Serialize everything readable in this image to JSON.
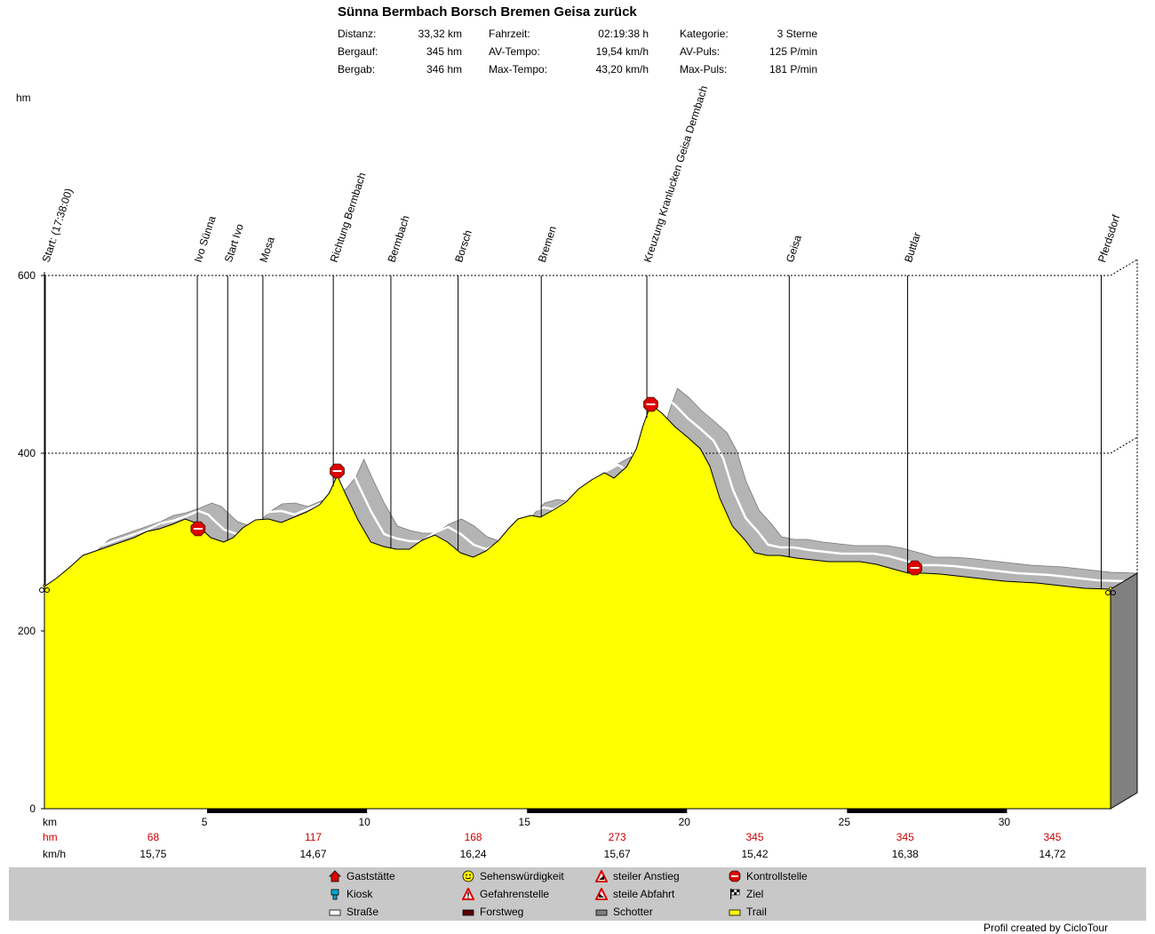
{
  "header": {
    "title": "Sünna Bermbach Borsch Bremen Geisa zurück",
    "stats": [
      {
        "label": "Distanz:",
        "value": "33,32 km"
      },
      {
        "label": "Bergauf:",
        "value": "345 hm"
      },
      {
        "label": "Bergab:",
        "value": "346 hm"
      },
      {
        "label": "Fahrzeit:",
        "value": "02:19:38 h"
      },
      {
        "label": "AV-Tempo:",
        "value": "19,54 km/h"
      },
      {
        "label": "Max-Tempo:",
        "value": "43,20 km/h"
      },
      {
        "label": "Kategorie:",
        "value": "3 Sterne"
      },
      {
        "label": "AV-Puls:",
        "value": "125 P/min"
      },
      {
        "label": "Max-Puls:",
        "value": "181 P/min"
      }
    ]
  },
  "colors": {
    "trail": "#ffff00",
    "shadow": "#b4b4b4",
    "side": "#808080",
    "stop": "#dd0000",
    "forstweg": "#000000",
    "cum_hm": "#cc0000"
  },
  "chart_data": {
    "type": "area",
    "ylabel": "hm",
    "xlabel": "km",
    "xlim": [
      0,
      33.32
    ],
    "ylim": [
      0,
      600
    ],
    "yticks": [
      0,
      200,
      400,
      600
    ],
    "xticks": [
      5,
      10,
      15,
      20,
      25,
      30
    ],
    "grid": "horizontal dashed at 200, 400, 600",
    "profile": [
      [
        0,
        250
      ],
      [
        0.4,
        260
      ],
      [
        0.8,
        272
      ],
      [
        1.2,
        285
      ],
      [
        1.6,
        290
      ],
      [
        2.0,
        295
      ],
      [
        2.4,
        300
      ],
      [
        2.8,
        305
      ],
      [
        3.2,
        312
      ],
      [
        3.6,
        315
      ],
      [
        4.0,
        320
      ],
      [
        4.4,
        326
      ],
      [
        4.7,
        322
      ],
      [
        4.9,
        315
      ],
      [
        5.2,
        305
      ],
      [
        5.6,
        300
      ],
      [
        5.9,
        305
      ],
      [
        6.2,
        316
      ],
      [
        6.6,
        325
      ],
      [
        7.0,
        326
      ],
      [
        7.4,
        322
      ],
      [
        7.8,
        328
      ],
      [
        8.2,
        334
      ],
      [
        8.6,
        342
      ],
      [
        8.9,
        355
      ],
      [
        9.15,
        375
      ],
      [
        9.4,
        355
      ],
      [
        9.8,
        325
      ],
      [
        10.2,
        300
      ],
      [
        10.6,
        295
      ],
      [
        11.0,
        292
      ],
      [
        11.4,
        292
      ],
      [
        11.8,
        302
      ],
      [
        12.2,
        308
      ],
      [
        12.6,
        300
      ],
      [
        13.0,
        288
      ],
      [
        13.4,
        283
      ],
      [
        13.8,
        290
      ],
      [
        14.2,
        302
      ],
      [
        14.5,
        315
      ],
      [
        14.8,
        326
      ],
      [
        15.2,
        330
      ],
      [
        15.5,
        328
      ],
      [
        15.9,
        336
      ],
      [
        16.3,
        345
      ],
      [
        16.7,
        360
      ],
      [
        17.1,
        370
      ],
      [
        17.5,
        378
      ],
      [
        17.8,
        372
      ],
      [
        18.2,
        385
      ],
      [
        18.5,
        405
      ],
      [
        18.7,
        430
      ],
      [
        18.95,
        455
      ],
      [
        19.3,
        445
      ],
      [
        19.7,
        430
      ],
      [
        20.1,
        418
      ],
      [
        20.5,
        405
      ],
      [
        20.8,
        385
      ],
      [
        21.1,
        350
      ],
      [
        21.5,
        318
      ],
      [
        21.9,
        302
      ],
      [
        22.2,
        288
      ],
      [
        22.6,
        285
      ],
      [
        23.0,
        285
      ],
      [
        23.5,
        282
      ],
      [
        24.0,
        280
      ],
      [
        24.5,
        278
      ],
      [
        25.0,
        278
      ],
      [
        25.5,
        278
      ],
      [
        26.0,
        275
      ],
      [
        26.5,
        270
      ],
      [
        27.0,
        265
      ],
      [
        27.5,
        265
      ],
      [
        28.0,
        264
      ],
      [
        28.5,
        262
      ],
      [
        29.0,
        260
      ],
      [
        29.5,
        258
      ],
      [
        30.0,
        256
      ],
      [
        30.5,
        255
      ],
      [
        31.0,
        254
      ],
      [
        31.5,
        252
      ],
      [
        32.0,
        250
      ],
      [
        32.5,
        248
      ],
      [
        33.32,
        247
      ]
    ],
    "waypoints": [
      {
        "km": 0.0,
        "label": "Start: (17:38:00)"
      },
      {
        "km": 4.75,
        "label": "Ivo Sünna"
      },
      {
        "km": 5.7,
        "label": "Start Ivo"
      },
      {
        "km": 6.8,
        "label": "Mosa"
      },
      {
        "km": 9.0,
        "label": "Richtung Bermbach"
      },
      {
        "km": 10.8,
        "label": "Bermbach"
      },
      {
        "km": 12.9,
        "label": "Borsch"
      },
      {
        "km": 15.5,
        "label": "Bremen"
      },
      {
        "km": 18.8,
        "label": "Kreuzung Kranlucken Geisa Dermbach"
      },
      {
        "km": 23.25,
        "label": "Geisa"
      },
      {
        "km": 26.95,
        "label": "Buttlar"
      },
      {
        "km": 33.0,
        "label": "Pferdsdorf"
      }
    ],
    "stops": [
      {
        "km": 4.8,
        "hm": 315
      },
      {
        "km": 9.15,
        "hm": 380
      },
      {
        "km": 18.95,
        "hm": 455
      },
      {
        "km": 27.2,
        "hm": 271
      }
    ],
    "forstweg_segments": [
      [
        5,
        10
      ],
      [
        15,
        20
      ],
      [
        25,
        30
      ]
    ],
    "summary_rows": {
      "hm_label": "hm",
      "kmh_label": "km/h",
      "segments": [
        {
          "km": 3.4,
          "hm": "68",
          "kmh": "15,75"
        },
        {
          "km": 8.4,
          "hm": "117",
          "kmh": "14,67"
        },
        {
          "km": 13.4,
          "hm": "168",
          "kmh": "16,24"
        },
        {
          "km": 17.9,
          "hm": "273",
          "kmh": "15,67"
        },
        {
          "km": 22.2,
          "hm": "345",
          "kmh": "15,42"
        },
        {
          "km": 26.9,
          "hm": "345",
          "kmh": "16,38"
        },
        {
          "km": 31.5,
          "hm": "345",
          "kmh": "14,72"
        }
      ]
    }
  },
  "legend": [
    {
      "icon": "house-icon",
      "label": "Gaststätte"
    },
    {
      "icon": "kiosk-icon",
      "label": "Kiosk"
    },
    {
      "icon": "road-swatch-icon",
      "label": "Straße"
    },
    {
      "icon": "smiley-icon",
      "label": "Sehenswürdigkeit"
    },
    {
      "icon": "warning-icon",
      "label": "Gefahrenstelle"
    },
    {
      "icon": "forstweg-swatch-icon",
      "label": "Forstweg"
    },
    {
      "icon": "steep-up-icon",
      "label": "steiler Anstieg"
    },
    {
      "icon": "steep-down-icon",
      "label": "steile Abfahrt"
    },
    {
      "icon": "schotter-swatch-icon",
      "label": "Schotter"
    },
    {
      "icon": "stop-icon",
      "label": "Kontrollstelle"
    },
    {
      "icon": "checkered-flag-icon",
      "label": "Ziel"
    },
    {
      "icon": "trail-swatch-icon",
      "label": "Trail"
    }
  ],
  "credit": "Profil created by CicloTour"
}
